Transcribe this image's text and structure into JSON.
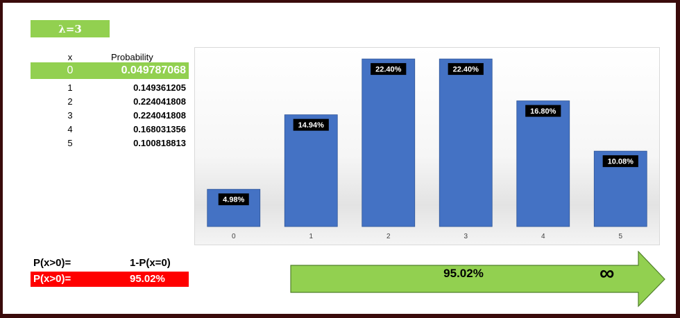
{
  "lambda_label": "λ=3",
  "table": {
    "header_x": "x",
    "header_p": "Probability",
    "rows": [
      {
        "x": "0",
        "p": "0.049787068"
      },
      {
        "x": "1",
        "p": "0.149361205"
      },
      {
        "x": "2",
        "p": "0.224041808"
      },
      {
        "x": "3",
        "p": "0.224041808"
      },
      {
        "x": "4",
        "p": "0.168031356"
      },
      {
        "x": "5",
        "p": "0.100818813"
      }
    ]
  },
  "formula": {
    "label": "P(x>0)=",
    "expression": "1-P(x=0)",
    "result_label": "P(x>0)=",
    "result_value": "95.02%"
  },
  "arrow": {
    "value": "95.02%",
    "symbol": "∞"
  },
  "colors": {
    "green": "#92d050",
    "red": "#ff0000",
    "bar": "#4472c4",
    "frame": "#3a0b0b"
  },
  "chart_data": {
    "type": "bar",
    "categories": [
      "0",
      "1",
      "2",
      "3",
      "4",
      "5"
    ],
    "values": [
      4.98,
      14.94,
      22.4,
      22.4,
      16.8,
      10.08
    ],
    "data_labels": [
      "4.98%",
      "14.94%",
      "22.40%",
      "22.40%",
      "16.80%",
      "10.08%"
    ],
    "title": "",
    "xlabel": "",
    "ylabel": "",
    "ylim": [
      0,
      25
    ],
    "grid": false,
    "legend": "none"
  }
}
